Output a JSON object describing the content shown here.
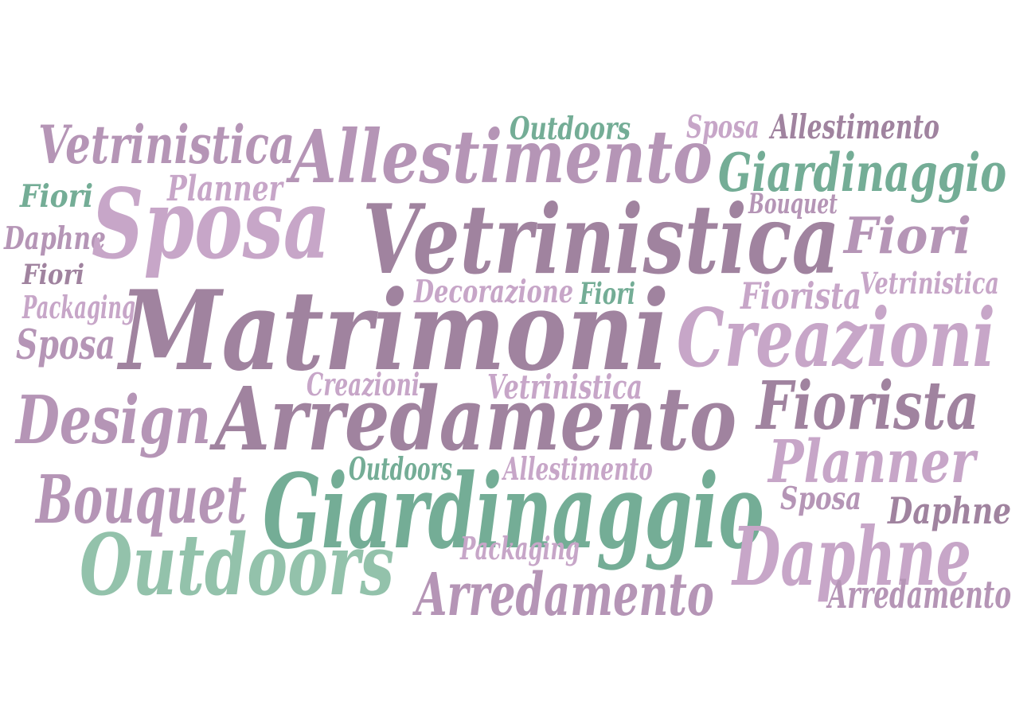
{
  "colors": {
    "purple_dark": "#a0839f",
    "purple_mid": "#b595b6",
    "purple_light": "#c7a6c8",
    "green": "#74ad96",
    "green_light": "#93c2ab"
  },
  "words": [
    {
      "text": "Vetrinistica",
      "tone": "purple_mid"
    },
    {
      "text": "Allestimento",
      "tone": "purple_mid"
    },
    {
      "text": "Outdoors",
      "tone": "green"
    },
    {
      "text": "Sposa",
      "tone": "purple_light"
    },
    {
      "text": "Allestimento",
      "tone": "purple_dark"
    },
    {
      "text": "Giardinaggio",
      "tone": "green"
    },
    {
      "text": "Fiori",
      "tone": "green"
    },
    {
      "text": "Planner",
      "tone": "purple_light"
    },
    {
      "text": "Bouquet",
      "tone": "purple_mid"
    },
    {
      "text": "Daphne",
      "tone": "purple_mid"
    },
    {
      "text": "Sposa",
      "tone": "purple_light"
    },
    {
      "text": "Vetrinistica",
      "tone": "purple_dark"
    },
    {
      "text": "Fiori",
      "tone": "purple_mid"
    },
    {
      "text": "Fiori",
      "tone": "purple_dark"
    },
    {
      "text": "Decorazione",
      "tone": "purple_light"
    },
    {
      "text": "Fiori",
      "tone": "green"
    },
    {
      "text": "Fiorista",
      "tone": "purple_light"
    },
    {
      "text": "Vetrinistica",
      "tone": "purple_light"
    },
    {
      "text": "Packaging",
      "tone": "purple_light"
    },
    {
      "text": "Matrimoni",
      "tone": "purple_dark"
    },
    {
      "text": "Creazioni",
      "tone": "purple_light"
    },
    {
      "text": "Sposa",
      "tone": "purple_mid"
    },
    {
      "text": "Creazioni",
      "tone": "purple_light"
    },
    {
      "text": "Vetrinistica",
      "tone": "purple_light"
    },
    {
      "text": "Design",
      "tone": "purple_mid"
    },
    {
      "text": "Arredamento",
      "tone": "purple_dark"
    },
    {
      "text": "Fiorista",
      "tone": "purple_dark"
    },
    {
      "text": "Outdoors",
      "tone": "green"
    },
    {
      "text": "Allestimento",
      "tone": "purple_light"
    },
    {
      "text": "Planner",
      "tone": "purple_light"
    },
    {
      "text": "Bouquet",
      "tone": "purple_mid"
    },
    {
      "text": "Giardinaggio",
      "tone": "green"
    },
    {
      "text": "Sposa",
      "tone": "purple_mid"
    },
    {
      "text": "Daphne",
      "tone": "purple_dark"
    },
    {
      "text": "Outdoors",
      "tone": "green_light"
    },
    {
      "text": "Packaging",
      "tone": "purple_light"
    },
    {
      "text": "Daphne",
      "tone": "purple_light"
    },
    {
      "text": "Arredamento",
      "tone": "purple_mid"
    },
    {
      "text": "Arredamento",
      "tone": "purple_mid"
    }
  ]
}
